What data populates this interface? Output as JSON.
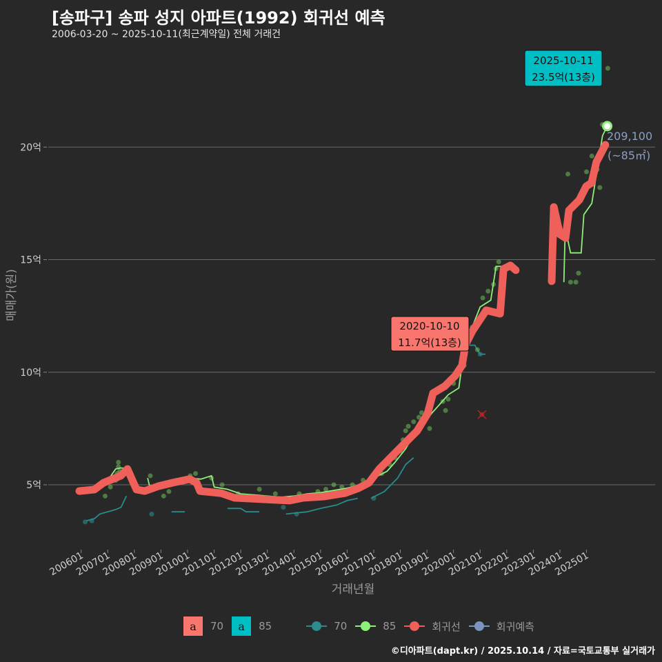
{
  "title": "[송파구] 송파 성지 아파트(1992) 회귀선 예측",
  "subtitle": "2006-03-20 ~ 2025-10-11(최근계약일) 전체 거래건",
  "footer": "©디아파트(dapt.kr) / 2025.10.14 / 자료=국토교통부 실거래가",
  "legend": {
    "fill_items": [
      {
        "glyph": "a",
        "label": "70",
        "color": "#f8766d"
      },
      {
        "glyph": "a",
        "label": "85",
        "color": "#00bfc4"
      }
    ],
    "line_items": [
      {
        "label": "70",
        "color": "#2a8c8c"
      },
      {
        "label": "85",
        "color": "#90ee7a"
      },
      {
        "label": "회귀선",
        "color": "#f0605a"
      },
      {
        "label": "회귀예측",
        "color": "#7a96c0"
      }
    ]
  },
  "chart_data": {
    "type": "line",
    "title": "[송파구] 송파 성지 아파트(1992) 회귀선 예측",
    "xlabel": "거래년월",
    "ylabel": "매매가(원)",
    "xlim": [
      2005.6,
      2026.4
    ],
    "ylim": [
      2.4,
      24.4
    ],
    "x_ticks": [
      {
        "v": 2006,
        "label": "200601"
      },
      {
        "v": 2007,
        "label": "200701"
      },
      {
        "v": 2008,
        "label": "200801"
      },
      {
        "v": 2009,
        "label": "200901"
      },
      {
        "v": 2010,
        "label": "201001"
      },
      {
        "v": 2011,
        "label": "201101"
      },
      {
        "v": 2012,
        "label": "201201"
      },
      {
        "v": 2013,
        "label": "201301"
      },
      {
        "v": 2014,
        "label": "201401"
      },
      {
        "v": 2015,
        "label": "201501"
      },
      {
        "v": 2016,
        "label": "201601"
      },
      {
        "v": 2017,
        "label": "201701"
      },
      {
        "v": 2018,
        "label": "201801"
      },
      {
        "v": 2019,
        "label": "201901"
      },
      {
        "v": 2020,
        "label": "202001"
      },
      {
        "v": 2021,
        "label": "202101"
      },
      {
        "v": 2022,
        "label": "202201"
      },
      {
        "v": 2023,
        "label": "202301"
      },
      {
        "v": 2024,
        "label": "202401"
      },
      {
        "v": 2025,
        "label": "202501"
      }
    ],
    "y_ticks": [
      {
        "v": 5,
        "label": "5억"
      },
      {
        "v": 10,
        "label": "10억"
      },
      {
        "v": 15,
        "label": "15억"
      },
      {
        "v": 20,
        "label": "20억"
      }
    ],
    "colors": {
      "reg": "#f0605a",
      "s85": "#90ee7a",
      "s70": "#2a8c8c",
      "pt85": "#6fbf5a",
      "pt70": "#2a8c8c"
    },
    "regression": [
      [
        [
          2005.93,
          4.72
        ],
        [
          2006.5,
          4.79
        ],
        [
          2006.84,
          5.09
        ],
        [
          2007.49,
          5.4
        ],
        [
          2007.74,
          5.7
        ],
        [
          2008.08,
          4.79
        ],
        [
          2008.39,
          4.72
        ],
        [
          2008.91,
          4.94
        ],
        [
          2009.43,
          5.09
        ],
        [
          2010.08,
          5.25
        ],
        [
          2010.34,
          5.09
        ],
        [
          2010.47,
          4.72
        ],
        [
          2011.25,
          4.63
        ],
        [
          2011.77,
          4.42
        ],
        [
          2012.8,
          4.36
        ],
        [
          2013.84,
          4.3
        ],
        [
          2014.36,
          4.42
        ],
        [
          2015.14,
          4.48
        ],
        [
          2015.92,
          4.63
        ],
        [
          2016.43,
          4.85
        ],
        [
          2016.82,
          5.09
        ],
        [
          2017.21,
          5.7
        ],
        [
          2017.73,
          6.32
        ],
        [
          2018.24,
          6.93
        ],
        [
          2018.63,
          7.39
        ],
        [
          2019.02,
          8.15
        ],
        [
          2019.23,
          9.07
        ],
        [
          2019.67,
          9.38
        ],
        [
          2020.06,
          9.84
        ],
        [
          2020.32,
          10.3
        ],
        [
          2020.45,
          11.22
        ],
        [
          2020.71,
          11.83
        ],
        [
          2020.97,
          12.29
        ],
        [
          2021.23,
          12.75
        ],
        [
          2021.75,
          12.6
        ],
        [
          2021.88,
          14.59
        ],
        [
          2022.14,
          14.74
        ],
        [
          2022.34,
          14.53
        ]
      ],
      [
        [
          2023.69,
          14.04
        ],
        [
          2023.77,
          17.34
        ],
        [
          2024.0,
          16.12
        ],
        [
          2024.21,
          15.96
        ],
        [
          2024.34,
          17.19
        ],
        [
          2024.73,
          17.65
        ],
        [
          2024.99,
          18.26
        ],
        [
          2025.19,
          18.41
        ],
        [
          2025.37,
          19.33
        ],
        [
          2025.71,
          20.1
        ]
      ]
    ],
    "series_85": [
      [
        [
          2006.3,
          4.85
        ],
        [
          2006.7,
          4.9
        ],
        [
          2007.0,
          5.2
        ],
        [
          2007.3,
          5.7
        ],
        [
          2007.5,
          5.75
        ],
        [
          2007.8,
          5.7
        ]
      ],
      [
        [
          2008.5,
          5.3
        ],
        [
          2008.6,
          4.8
        ],
        [
          2009.0,
          4.9
        ],
        [
          2009.5,
          5.1
        ],
        [
          2010.0,
          5.3
        ],
        [
          2010.5,
          5.25
        ],
        [
          2010.9,
          5.4
        ],
        [
          2011.0,
          4.9
        ],
        [
          2011.5,
          4.8
        ],
        [
          2012.0,
          4.6
        ],
        [
          2012.5,
          4.55
        ],
        [
          2013.0,
          4.5
        ],
        [
          2013.5,
          4.45
        ],
        [
          2014.0,
          4.5
        ],
        [
          2014.5,
          4.6
        ],
        [
          2015.0,
          4.65
        ],
        [
          2015.5,
          4.75
        ],
        [
          2016.0,
          4.85
        ],
        [
          2016.5,
          5.0
        ],
        [
          2017.0,
          5.3
        ],
        [
          2017.5,
          5.6
        ],
        [
          2017.8,
          6.0
        ],
        [
          2018.2,
          6.6
        ],
        [
          2018.5,
          7.2
        ],
        [
          2018.8,
          7.6
        ],
        [
          2019.2,
          8.2
        ],
        [
          2019.5,
          8.6
        ],
        [
          2019.8,
          9.0
        ],
        [
          2020.2,
          9.3
        ],
        [
          2020.4,
          11.0
        ],
        [
          2020.7,
          12.0
        ],
        [
          2021.0,
          12.9
        ],
        [
          2021.4,
          13.2
        ],
        [
          2021.6,
          14.7
        ],
        [
          2022.3,
          14.7
        ]
      ],
      [
        [
          2024.15,
          14.0
        ],
        [
          2024.2,
          16.4
        ],
        [
          2024.4,
          15.3
        ],
        [
          2024.8,
          15.3
        ],
        [
          2024.9,
          17.0
        ],
        [
          2025.2,
          17.5
        ],
        [
          2025.4,
          19.0
        ],
        [
          2025.6,
          20.5
        ],
        [
          2025.78,
          20.93
        ]
      ]
    ],
    "series_70": [
      [
        [
          2006.2,
          3.4
        ],
        [
          2006.5,
          3.5
        ],
        [
          2006.7,
          3.7
        ],
        [
          2007.3,
          3.9
        ],
        [
          2007.5,
          4.0
        ],
        [
          2007.7,
          4.5
        ]
      ],
      [
        [
          2009.4,
          3.8
        ],
        [
          2009.9,
          3.8
        ]
      ],
      [
        [
          2011.5,
          3.95
        ],
        [
          2012.0,
          3.95
        ],
        [
          2012.2,
          3.8
        ],
        [
          2012.7,
          3.8
        ]
      ],
      [
        [
          2013.7,
          3.7
        ],
        [
          2014.5,
          3.8
        ],
        [
          2015.0,
          3.95
        ],
        [
          2015.6,
          4.1
        ],
        [
          2016.0,
          4.3
        ],
        [
          2016.4,
          4.4
        ]
      ],
      [
        [
          2016.9,
          4.4
        ],
        [
          2017.4,
          4.7
        ],
        [
          2017.9,
          5.3
        ],
        [
          2018.2,
          5.9
        ],
        [
          2018.5,
          6.2
        ]
      ],
      [
        [
          2020.2,
          9.3
        ],
        [
          2020.4,
          11.2
        ],
        [
          2020.8,
          11.2
        ],
        [
          2021.0,
          10.8
        ],
        [
          2021.2,
          10.8
        ]
      ]
    ],
    "points_85": [
      [
        2006.3,
        4.7
      ],
      [
        2006.5,
        4.8
      ],
      [
        2006.9,
        4.5
      ],
      [
        2007.1,
        4.9
      ],
      [
        2007.3,
        5.2
      ],
      [
        2007.35,
        5.5
      ],
      [
        2007.4,
        5.8
      ],
      [
        2007.4,
        6.0
      ],
      [
        2007.45,
        5.6
      ],
      [
        2008.6,
        5.4
      ],
      [
        2009.1,
        4.5
      ],
      [
        2009.3,
        4.7
      ],
      [
        2009.6,
        5.2
      ],
      [
        2010.1,
        5.4
      ],
      [
        2010.3,
        5.5
      ],
      [
        2010.9,
        5.3
      ],
      [
        2011.3,
        5.0
      ],
      [
        2011.9,
        4.6
      ],
      [
        2012.3,
        4.4
      ],
      [
        2012.7,
        4.8
      ],
      [
        2013.3,
        4.6
      ],
      [
        2014.2,
        4.6
      ],
      [
        2014.5,
        4.5
      ],
      [
        2014.9,
        4.7
      ],
      [
        2015.2,
        4.8
      ],
      [
        2015.5,
        5.0
      ],
      [
        2015.8,
        4.9
      ],
      [
        2016.2,
        5.0
      ],
      [
        2016.6,
        5.2
      ],
      [
        2016.9,
        5.3
      ],
      [
        2017.3,
        5.5
      ],
      [
        2017.6,
        5.9
      ],
      [
        2017.8,
        6.2
      ],
      [
        2018.0,
        6.5
      ],
      [
        2018.1,
        7.0
      ],
      [
        2018.2,
        7.4
      ],
      [
        2018.3,
        7.6
      ],
      [
        2018.5,
        7.8
      ],
      [
        2018.7,
        8.0
      ],
      [
        2018.8,
        8.2
      ],
      [
        2019.1,
        7.5
      ],
      [
        2019.6,
        8.7
      ],
      [
        2019.7,
        8.3
      ],
      [
        2019.8,
        8.8
      ],
      [
        2020.0,
        9.5
      ],
      [
        2020.4,
        10.3
      ],
      [
        2020.7,
        12.0
      ],
      [
        2020.9,
        11.0
      ],
      [
        2021.1,
        13.3
      ],
      [
        2021.3,
        13.6
      ],
      [
        2021.5,
        13.9
      ],
      [
        2021.6,
        14.6
      ],
      [
        2021.7,
        14.9
      ],
      [
        2024.3,
        18.8
      ],
      [
        2024.4,
        14.0
      ],
      [
        2024.6,
        14.0
      ],
      [
        2024.7,
        14.4
      ],
      [
        2025.0,
        18.9
      ],
      [
        2025.2,
        19.6
      ],
      [
        2025.4,
        19.0
      ],
      [
        2025.5,
        18.2
      ],
      [
        2025.6,
        21.0
      ],
      [
        2025.8,
        23.5
      ]
    ],
    "points_70": [
      [
        2006.15,
        3.35
      ],
      [
        2006.4,
        3.4
      ],
      [
        2008.65,
        3.7
      ],
      [
        2013.6,
        4.0
      ],
      [
        2014.1,
        3.7
      ],
      [
        2017.0,
        4.4
      ],
      [
        2021.0,
        10.8
      ]
    ],
    "outlier": [
      2021.07,
      8.12
    ],
    "last_point": [
      2025.78,
      20.93
    ],
    "annotations": [
      {
        "date": "2020-10-10",
        "price": "11.7억(13층)",
        "color": "#f8766d",
        "x": 2020.77,
        "y": 11.7
      },
      {
        "date": "2025-10-11",
        "price": "23.5억(13층)",
        "color": "#00bfc4",
        "x": 2025.78,
        "y": 23.5
      }
    ],
    "forecast_label": {
      "value": "209,100",
      "area": "(~85㎡)",
      "color": "#8ca0c0"
    }
  }
}
